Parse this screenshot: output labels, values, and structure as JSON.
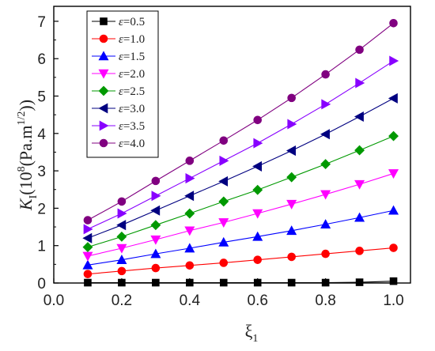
{
  "chart_data": {
    "type": "line",
    "title": "",
    "xlabel": {
      "symbol": "ξ",
      "sub": "1"
    },
    "ylabel": {
      "symbol": "K",
      "sub": "I",
      "rest": "(10",
      "sup1": "8",
      "mid": "(Pa.m",
      "sup2": "1/2",
      "end": "))"
    },
    "xlim": [
      0.0,
      1.05
    ],
    "ylim": [
      0,
      7.4
    ],
    "xticks": [
      "0.0",
      "0.2",
      "0.4",
      "0.6",
      "0.8",
      "1.0"
    ],
    "yticks": [
      "0",
      "1",
      "2",
      "3",
      "4",
      "5",
      "6",
      "7"
    ],
    "grid": false,
    "legend": "top-left",
    "x": [
      0.1,
      0.2,
      0.3,
      0.4,
      0.5,
      0.6,
      0.7,
      0.8,
      0.9,
      1.0
    ],
    "series": [
      {
        "name_symbol": "ε",
        "name_value": "=0.5",
        "marker": "square",
        "color": "#000000",
        "values": [
          0.01,
          0.01,
          0.01,
          0.01,
          0.01,
          0.01,
          0.01,
          0.01,
          0.02,
          0.05
        ]
      },
      {
        "name_symbol": "ε",
        "name_value": "=1.0",
        "marker": "circle",
        "color": "#ff0000",
        "values": [
          0.24,
          0.32,
          0.4,
          0.47,
          0.54,
          0.62,
          0.7,
          0.78,
          0.86,
          0.94
        ]
      },
      {
        "name_symbol": "ε",
        "name_value": "=1.5",
        "marker": "triangle-up",
        "color": "#0000ff",
        "values": [
          0.48,
          0.62,
          0.78,
          0.93,
          1.09,
          1.24,
          1.4,
          1.57,
          1.75,
          1.94
        ]
      },
      {
        "name_symbol": "ε",
        "name_value": "=2.0",
        "marker": "triangle-down",
        "color": "#ff00ff",
        "values": [
          0.72,
          0.93,
          1.16,
          1.4,
          1.62,
          1.86,
          2.11,
          2.37,
          2.64,
          2.93
        ]
      },
      {
        "name_symbol": "ε",
        "name_value": "=2.5",
        "marker": "diamond",
        "color": "#009900",
        "values": [
          0.96,
          1.24,
          1.55,
          1.86,
          2.18,
          2.49,
          2.83,
          3.18,
          3.55,
          3.93
        ]
      },
      {
        "name_symbol": "ε",
        "name_value": "=3.0",
        "marker": "triangle-left",
        "color": "#000080",
        "values": [
          1.2,
          1.55,
          1.94,
          2.33,
          2.72,
          3.12,
          3.54,
          3.98,
          4.45,
          4.94
        ]
      },
      {
        "name_symbol": "ε",
        "name_value": "=3.5",
        "marker": "triangle-right",
        "color": "#8800ff",
        "values": [
          1.44,
          1.86,
          2.33,
          2.8,
          3.27,
          3.74,
          4.25,
          4.78,
          5.35,
          5.94
        ]
      },
      {
        "name_symbol": "ε",
        "name_value": "=4.0",
        "marker": "circle",
        "color": "#800080",
        "values": [
          1.68,
          2.18,
          2.73,
          3.27,
          3.81,
          4.36,
          4.95,
          5.58,
          6.24,
          6.95
        ]
      }
    ]
  }
}
